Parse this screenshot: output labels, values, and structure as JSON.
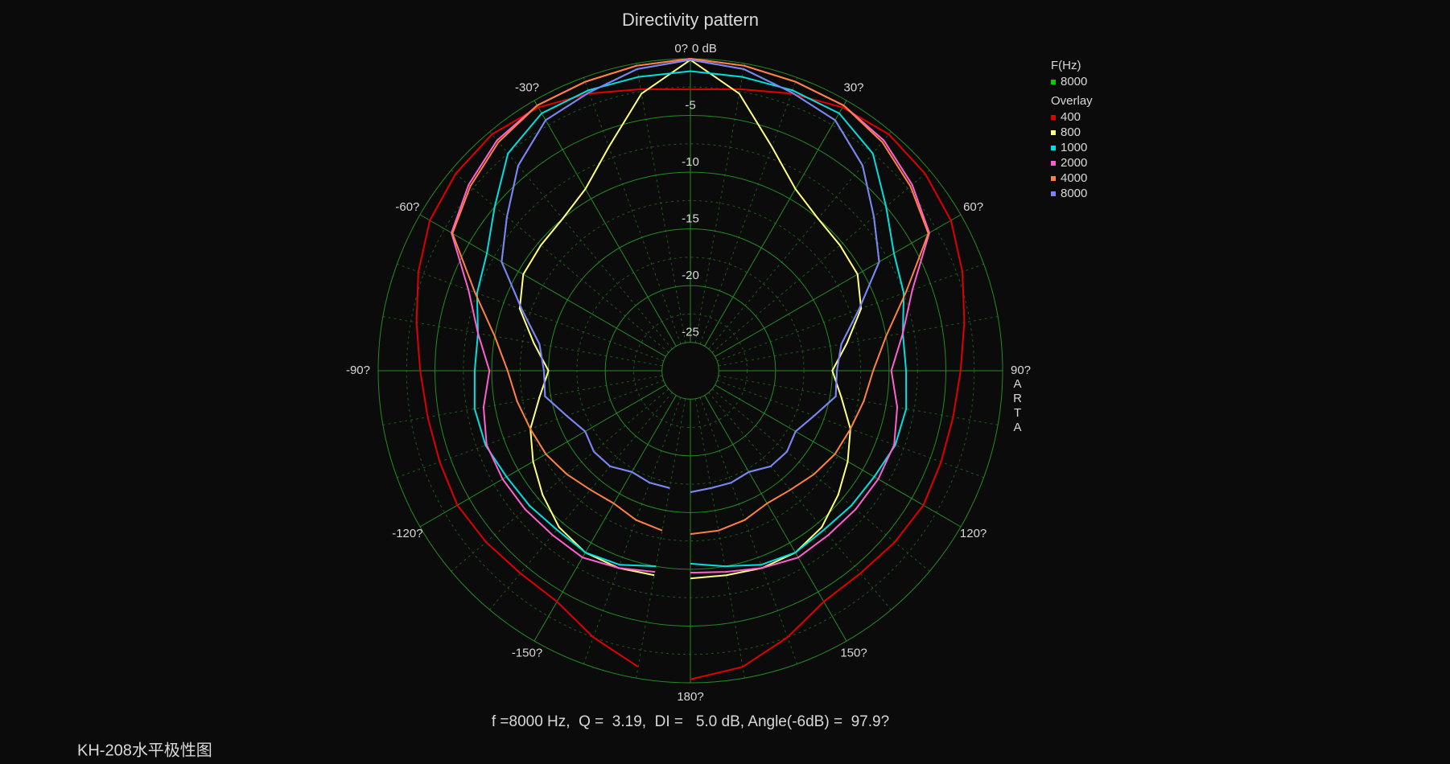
{
  "chart_data": {
    "type": "polar",
    "title": "Directivity pattern",
    "angles": [
      -170,
      -160,
      -150,
      -140,
      -130,
      -120,
      -110,
      -100,
      -90,
      -80,
      -70,
      -60,
      -50,
      -40,
      -30,
      -20,
      -10,
      0,
      10,
      20,
      30,
      40,
      50,
      60,
      70,
      80,
      90,
      100,
      110,
      120,
      130,
      140,
      150,
      160,
      170,
      180
    ],
    "rlim": [
      -27.5,
      0
    ],
    "rticks": [
      {
        "value": 0,
        "label": "0 dB"
      },
      -5,
      -10,
      -15,
      -20,
      -25
    ],
    "angle_ticks": [
      {
        "value": 0,
        "label": "0?"
      },
      {
        "value": 30,
        "label": "30?"
      },
      {
        "value": 60,
        "label": "60?"
      },
      {
        "value": 90,
        "label": "90?"
      },
      {
        "value": 120,
        "label": "120?"
      },
      {
        "value": 150,
        "label": "150?"
      },
      {
        "value": 180,
        "label": "180?"
      },
      {
        "value": -150,
        "label": "-150?"
      },
      {
        "value": -120,
        "label": "-120?"
      },
      {
        "value": -90,
        "label": "-90?"
      },
      {
        "value": -60,
        "label": "-60?"
      },
      {
        "value": -30,
        "label": "-30?"
      }
    ],
    "grid": true,
    "legend_title": "F(Hz)",
    "overlay_title": "Overlay",
    "series": [
      {
        "name": "8000",
        "color": "#00d000",
        "values": [
          -17,
          -17,
          -17.2,
          -16.5,
          -16.4,
          -16.8,
          -15.9,
          -14.5,
          -14.6,
          -14,
          -11.7,
          -8.3,
          -6.4,
          -3.9,
          -2,
          -1.4,
          -0.5,
          -0.1,
          -0.5,
          -1.4,
          -2,
          -3.9,
          -6.4,
          -8.3,
          -11.7,
          -14,
          -14.6,
          -14.5,
          -15.9,
          -16.8,
          -16.4,
          -16.5,
          -17.2,
          -17,
          -17,
          -16.8
        ]
      },
      {
        "name": "400",
        "color": "#e00000",
        "values": [
          -1,
          -2.5,
          -4,
          -4.2,
          -4,
          -3.8,
          -4,
          -4,
          -3.7,
          -3,
          -2,
          -1,
          -0.5,
          -0.3,
          -0.7,
          -1.5,
          -2.3,
          -2.7,
          -2.3,
          -1.5,
          -0.7,
          -0.3,
          -0.5,
          -1,
          -2,
          -3,
          -3.7,
          -4,
          -4,
          -3.8,
          -4,
          -4.2,
          -4,
          -2.5,
          -1,
          -0.3
        ]
      },
      {
        "name": "800",
        "color": "#ffff80",
        "values": [
          -9.2,
          -9,
          -9,
          -9.5,
          -10.5,
          -11.5,
          -12.5,
          -14,
          -15,
          -13.5,
          -11.5,
          -10.5,
          -10.3,
          -10,
          -9,
          -6.5,
          -2.7,
          -0.1,
          -2.7,
          -6.5,
          -9,
          -10,
          -10.3,
          -10.5,
          -11.5,
          -13.5,
          -15,
          -14,
          -12.5,
          -11.5,
          -10.5,
          -9.5,
          -9,
          -9,
          -9.2,
          -9.2
        ]
      },
      {
        "name": "1000",
        "color": "#00e0e0",
        "values": [
          -10,
          -9.3,
          -9,
          -9.2,
          -9,
          -8.8,
          -8.3,
          -8.2,
          -8.5,
          -8.5,
          -7.5,
          -6.8,
          -5,
          -2.5,
          -1.3,
          -1.2,
          -1.2,
          -1.1,
          -1.2,
          -1.2,
          -1.3,
          -2.5,
          -5,
          -6.8,
          -7.5,
          -8.5,
          -8.5,
          -8.2,
          -8.3,
          -8.8,
          -9,
          -9.2,
          -9,
          -9.3,
          -10,
          -10.5
        ]
      },
      {
        "name": "2000",
        "color": "#ff60d0",
        "values": [
          -9.5,
          -9,
          -8.5,
          -8.6,
          -8.5,
          -8.4,
          -8.4,
          -9,
          -9.8,
          -8.5,
          -6.7,
          -3.2,
          -2,
          -1,
          -0.5,
          -0.4,
          -0.2,
          0,
          -0.2,
          -0.4,
          -0.5,
          -1,
          -2,
          -3.2,
          -6.7,
          -8.5,
          -9.8,
          -9,
          -8.4,
          -8.4,
          -8.5,
          -8.6,
          -8.5,
          -9,
          -9.5,
          -9.7
        ]
      },
      {
        "name": "4000",
        "color": "#ff8040",
        "values": [
          -13.2,
          -13.5,
          -14,
          -13.8,
          -13.3,
          -12.8,
          -12.5,
          -12,
          -11.4,
          -10,
          -7.3,
          -3.3,
          -2.2,
          -1.2,
          -0.5,
          -0.4,
          -0.2,
          0,
          -0.2,
          -0.4,
          -0.5,
          -1.2,
          -2.2,
          -3.3,
          -7.3,
          -10,
          -11.4,
          -12,
          -12.5,
          -12.8,
          -13.3,
          -13.8,
          -14,
          -13.5,
          -13.2,
          -13.1
        ]
      },
      {
        "name": "8000",
        "color": "#8080ff",
        "values": [
          -17,
          -17,
          -17.2,
          -16.5,
          -16.4,
          -16.8,
          -15.9,
          -14.5,
          -14.6,
          -14,
          -11.7,
          -8.3,
          -6.4,
          -3.9,
          -2,
          -1.4,
          -0.5,
          -0.1,
          -0.5,
          -1.4,
          -2,
          -3.9,
          -6.4,
          -8.3,
          -11.7,
          -14,
          -14.6,
          -14.5,
          -15.9,
          -16.8,
          -16.4,
          -16.5,
          -17.2,
          -17,
          -17,
          -16.8
        ]
      }
    ],
    "watermark": "ARTA",
    "annotation": "f =8000 Hz,  Q =  3.19,  DI =   5.0 dB, Angle(-6dB) =  97.9?",
    "caption": "KH-208水平极性图"
  }
}
